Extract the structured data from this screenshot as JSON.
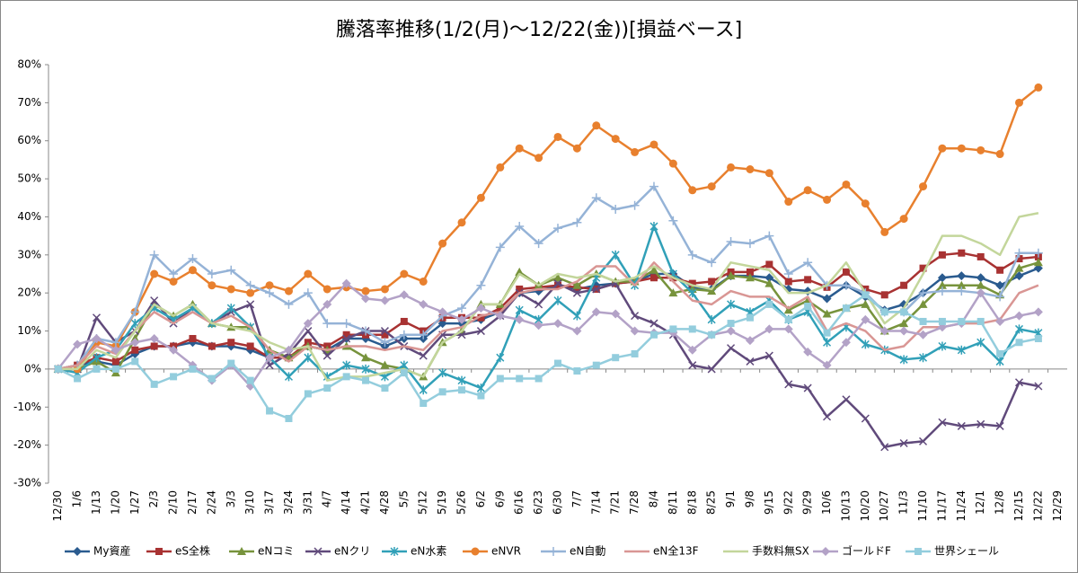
{
  "chart_data": {
    "type": "line",
    "title": "騰落率推移(1/2(月)～12/22(金))[損益ベース]",
    "categories": [
      "12/30",
      "1/6",
      "1/13",
      "1/20",
      "1/27",
      "2/3",
      "2/10",
      "2/17",
      "2/24",
      "3/3",
      "3/10",
      "3/17",
      "3/24",
      "3/31",
      "4/7",
      "4/14",
      "4/21",
      "4/28",
      "5/5",
      "5/12",
      "5/19",
      "5/26",
      "6/2",
      "6/9",
      "6/16",
      "6/23",
      "6/30",
      "7/7",
      "7/14",
      "7/21",
      "7/28",
      "8/4",
      "8/11",
      "8/18",
      "8/25",
      "9/1",
      "9/8",
      "9/15",
      "9/22",
      "9/29",
      "10/6",
      "10/13",
      "10/20",
      "10/27",
      "11/3",
      "11/10",
      "11/17",
      "11/24",
      "12/1",
      "12/8",
      "12/15",
      "12/22",
      "12/29"
    ],
    "ylim": [
      -30,
      80
    ],
    "yticks": [
      {
        "value": -30,
        "label": "-30%"
      },
      {
        "value": -20,
        "label": "-20%"
      },
      {
        "value": -10,
        "label": "-10%"
      },
      {
        "value": 0,
        "label": "0%"
      },
      {
        "value": 10,
        "label": "10%"
      },
      {
        "value": 20,
        "label": "20%"
      },
      {
        "value": 30,
        "label": "30%"
      },
      {
        "value": 40,
        "label": "40%"
      },
      {
        "value": 50,
        "label": "50%"
      },
      {
        "value": 60,
        "label": "60%"
      },
      {
        "value": 70,
        "label": "70%"
      },
      {
        "value": 80,
        "label": "80%"
      }
    ],
    "grid": false,
    "legend": "bottom",
    "series": [
      {
        "name": "My資産",
        "color": "#2a5b8f",
        "marker": "diamond",
        "values": [
          0,
          1,
          2,
          1,
          4,
          6,
          6,
          7,
          6,
          6,
          5,
          3,
          3,
          6,
          5,
          8,
          8,
          6,
          8,
          8,
          12,
          12,
          13,
          15,
          20,
          20.5,
          22,
          21,
          22,
          22.5,
          23,
          25,
          25,
          21.5,
          21,
          24.5,
          24.5,
          24,
          21,
          20.5,
          18.5,
          22,
          19,
          15.5,
          17,
          20,
          24,
          24.5,
          24,
          22,
          24.5,
          26.5,
          null
        ]
      },
      {
        "name": "eS全株",
        "color": "#a83232",
        "marker": "square",
        "values": [
          0,
          1,
          3,
          2,
          5,
          6,
          6,
          8,
          6,
          7,
          6,
          3,
          3,
          7,
          6,
          9,
          9,
          9,
          12.5,
          10,
          13.5,
          13.5,
          13.5,
          16,
          21,
          21.5,
          22,
          21.5,
          21,
          22.5,
          23,
          24,
          24,
          22.5,
          23,
          25.5,
          25.5,
          27.5,
          23,
          23.5,
          21.5,
          25.5,
          21,
          19.5,
          22,
          26.5,
          30,
          30.5,
          29.5,
          26,
          29,
          29.5,
          null
        ]
      },
      {
        "name": "eNコミ",
        "color": "#77933c",
        "marker": "triangle",
        "values": [
          0,
          0,
          2,
          -1,
          8,
          17,
          14,
          17,
          12,
          11,
          11,
          5,
          3,
          6,
          5,
          6,
          3,
          1,
          0,
          -2,
          7,
          10,
          17,
          17,
          25.5,
          22,
          24,
          22,
          25,
          23,
          23,
          26,
          20,
          21,
          20.5,
          24.5,
          24,
          22.5,
          15.5,
          18,
          14.5,
          16,
          17,
          10,
          12,
          17,
          22,
          22,
          22,
          19.5,
          26.5,
          28,
          null
        ]
      },
      {
        "name": "eNクリ",
        "color": "#604a7b",
        "marker": "x",
        "values": [
          0,
          0,
          13.5,
          7,
          10,
          18,
          12,
          16,
          12,
          15,
          17,
          1,
          4,
          10,
          3.5,
          8,
          10,
          10,
          6,
          3.5,
          9,
          9,
          10,
          14,
          20,
          17,
          22.5,
          20,
          21,
          22.5,
          14,
          12,
          9,
          1,
          0,
          5.5,
          2,
          3.5,
          -4,
          -5,
          -12.5,
          -8,
          -13,
          -20.5,
          -19.5,
          -19,
          -14,
          -15,
          -14.5,
          -15,
          -3.5,
          -4.5,
          null
        ]
      },
      {
        "name": "eN水素",
        "color": "#31a0b8",
        "marker": "star",
        "values": [
          0,
          -1,
          3,
          5,
          12,
          16,
          13,
          16,
          12,
          16,
          11,
          3,
          -2,
          3,
          -2,
          1,
          0,
          -2,
          1,
          -5.5,
          -1,
          -3,
          -5,
          3,
          15.5,
          13,
          18,
          14,
          24,
          30,
          22,
          37.5,
          25,
          20,
          13,
          17,
          15,
          18,
          13,
          15,
          7,
          11,
          6.5,
          5,
          2.5,
          3,
          6,
          5,
          7,
          2,
          10.5,
          9.5,
          null
        ]
      },
      {
        "name": "eNVR",
        "color": "#e8802e",
        "marker": "circle",
        "values": [
          0,
          0,
          7,
          6,
          15,
          25,
          23,
          26,
          22,
          21,
          20,
          22,
          20.5,
          25,
          21,
          21.5,
          20.5,
          21,
          25,
          23,
          33,
          38.5,
          45,
          53,
          58,
          55.5,
          61,
          58,
          64,
          60.5,
          57,
          59,
          54,
          47,
          48,
          53,
          52.5,
          51.5,
          44,
          47,
          44.5,
          48.5,
          43.5,
          36,
          39.5,
          48,
          58,
          58,
          57.5,
          56.5,
          70,
          74,
          null
        ]
      },
      {
        "name": "eN自動",
        "color": "#95b3d7",
        "marker": "plus",
        "values": [
          0,
          1,
          8,
          7,
          15,
          30,
          25,
          29,
          25,
          26,
          22,
          20,
          17,
          20,
          12,
          12,
          10,
          7,
          9,
          9,
          14,
          16,
          22,
          32,
          37.5,
          33,
          37,
          38.5,
          45,
          42,
          43,
          48,
          39,
          30,
          28,
          33.5,
          33,
          35,
          25,
          28,
          22,
          22,
          20,
          15,
          15,
          20,
          20.5,
          20.5,
          20,
          19,
          30.5,
          30.5,
          null
        ]
      },
      {
        "name": "eN全13F",
        "color": "#d99694",
        "marker": "none",
        "values": [
          0,
          1,
          6,
          4,
          10,
          15,
          12,
          15,
          12,
          14,
          11,
          5,
          2,
          6,
          5,
          6,
          6,
          5,
          6,
          5,
          10,
          11,
          14,
          15,
          20,
          21,
          21,
          23,
          27,
          27,
          22,
          28,
          23,
          18,
          17,
          20.5,
          19,
          19,
          16,
          19,
          10,
          12,
          10,
          5,
          6,
          11,
          11,
          12,
          12,
          13,
          20,
          22,
          null
        ]
      },
      {
        "name": "手数料無SX",
        "color": "#c3d69b",
        "marker": "none",
        "values": [
          0,
          0,
          5,
          3,
          10,
          17,
          14,
          17,
          12,
          11,
          10,
          7,
          5,
          6,
          -3,
          -2,
          -2,
          -1,
          0,
          -2,
          7,
          10,
          17,
          17,
          25,
          22,
          25,
          24,
          25,
          23,
          24,
          27,
          24,
          22,
          21,
          28,
          27,
          26,
          20,
          20,
          22,
          28,
          20,
          12,
          16,
          25,
          35,
          35,
          33,
          30,
          40,
          41,
          null
        ]
      },
      {
        "name": "ゴールドF",
        "color": "#b3a2c7",
        "marker": "diamond",
        "values": [
          0,
          6.5,
          8,
          5,
          7,
          8,
          5,
          1,
          -3,
          1,
          -4.5,
          3,
          5,
          12,
          17,
          22.5,
          18.5,
          18,
          19.5,
          17,
          15,
          13,
          16,
          14,
          13,
          11.5,
          12,
          10,
          15,
          14.5,
          10,
          9.5,
          9.5,
          5,
          9,
          10,
          7.5,
          10.5,
          10.5,
          4.5,
          1,
          7,
          13,
          10,
          10,
          9,
          11,
          12,
          20,
          12.5,
          14,
          15,
          null
        ]
      },
      {
        "name": "世界シェール",
        "color": "#93cddd",
        "marker": "square",
        "values": [
          0,
          -2.5,
          0,
          0,
          2,
          -4,
          -2,
          0,
          -2.5,
          1.5,
          -3,
          -11,
          -13,
          -6.5,
          -5,
          -2,
          -3,
          -5,
          -1,
          -9,
          -6,
          -5.5,
          -7,
          -2.5,
          -2.5,
          -2.5,
          1.5,
          -0.5,
          1,
          3,
          4,
          9,
          10.5,
          10.5,
          9,
          12,
          13.5,
          17,
          13,
          16.5,
          9.5,
          16,
          19.5,
          15,
          15,
          12.5,
          12.5,
          12.5,
          12.5,
          4,
          7,
          8,
          null
        ]
      }
    ]
  }
}
